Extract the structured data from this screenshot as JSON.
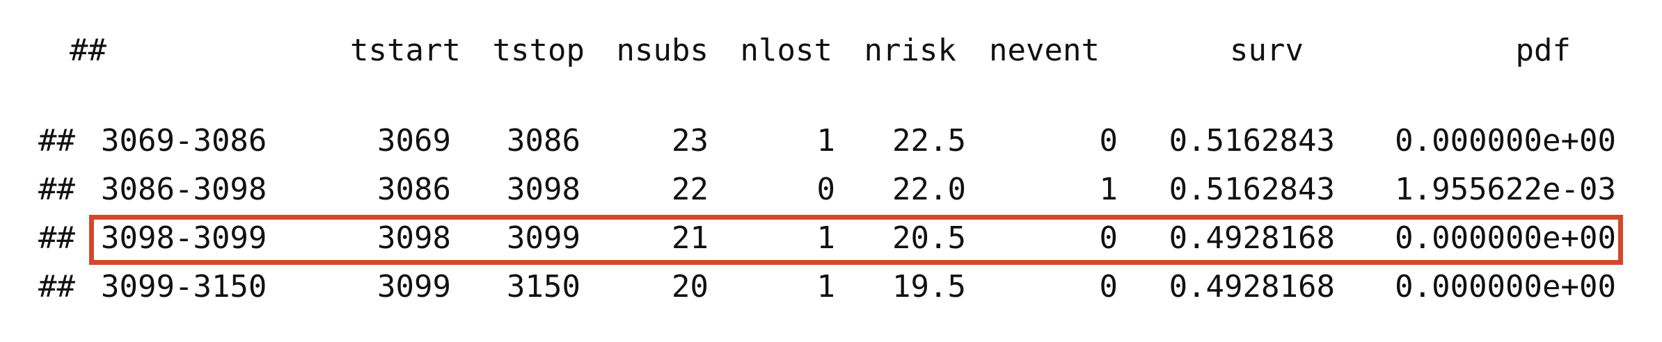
{
  "table": {
    "header": {
      "prefix": "##",
      "columns": [
        "tstart",
        "tstop",
        "nsubs",
        "nlost",
        "nrisk",
        "nevent",
        "surv",
        "pdf"
      ]
    },
    "rows": [
      {
        "prefix": "##",
        "interval": "3069-3086",
        "tstart": "3069",
        "tstop": "3086",
        "nsubs": "23",
        "nlost": "1",
        "nrisk": "22.5",
        "nevent": "0",
        "surv": "0.5162843",
        "pdf": "0.000000e+00",
        "highlighted": false
      },
      {
        "prefix": "##",
        "interval": "3086-3098",
        "tstart": "3086",
        "tstop": "3098",
        "nsubs": "22",
        "nlost": "0",
        "nrisk": "22.0",
        "nevent": "1",
        "surv": "0.5162843",
        "pdf": "1.955622e-03",
        "highlighted": false
      },
      {
        "prefix": "##",
        "interval": "3098-3099",
        "tstart": "3098",
        "tstop": "3099",
        "nsubs": "21",
        "nlost": "1",
        "nrisk": "20.5",
        "nevent": "0",
        "surv": "0.4928168",
        "pdf": "0.000000e+00",
        "highlighted": true
      },
      {
        "prefix": "##",
        "interval": "3099-3150",
        "tstart": "3099",
        "tstop": "3150",
        "nsubs": "20",
        "nlost": "1",
        "nrisk": "19.5",
        "nevent": "0",
        "surv": "0.4928168",
        "pdf": "0.000000e+00",
        "highlighted": false
      }
    ]
  },
  "colors": {
    "highlight_border": "#d2492a",
    "text": "#111111",
    "background": "#ffffff"
  }
}
